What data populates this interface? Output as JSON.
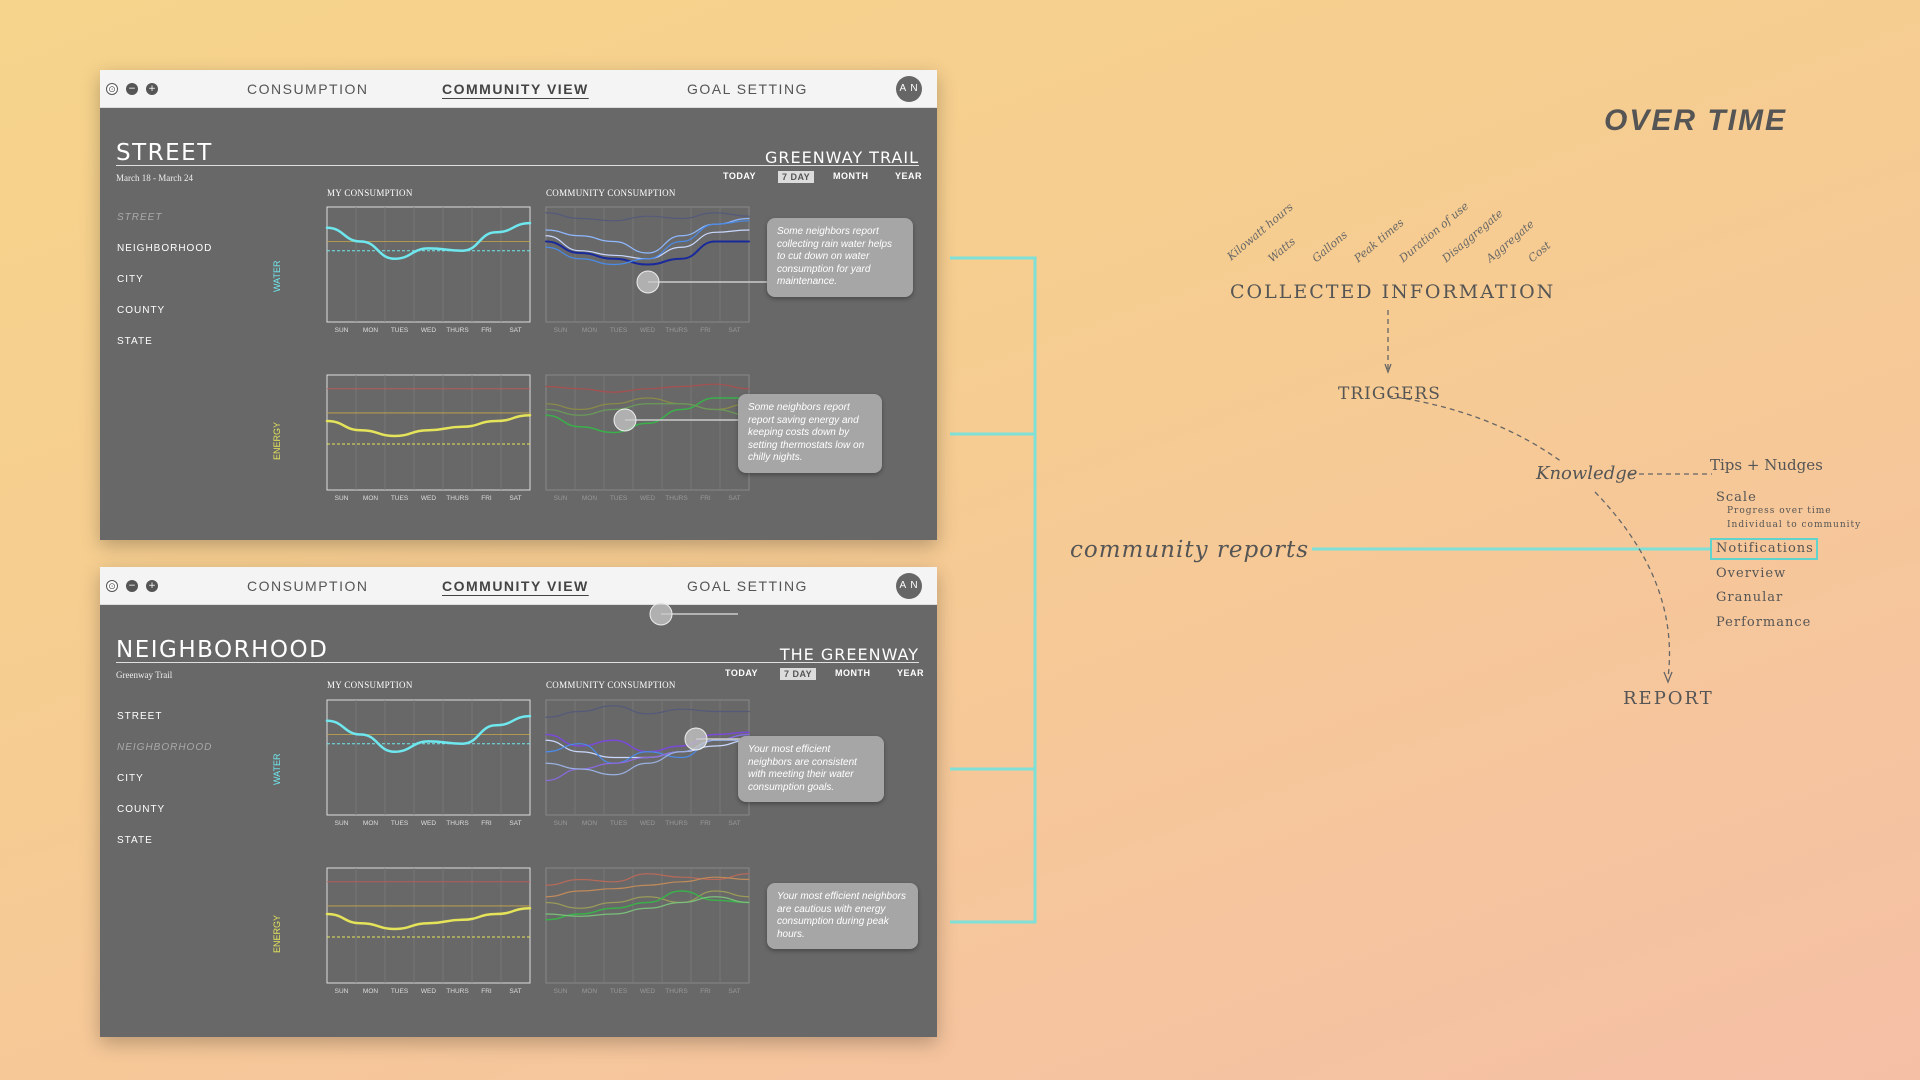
{
  "tabs": [
    "CONSUMPTION",
    "COMMUNITY VIEW",
    "GOAL SETTING"
  ],
  "avatar": "A N",
  "ranges": [
    "TODAY",
    "7 DAY",
    "MONTH",
    "YEAR"
  ],
  "nav": [
    "STREET",
    "NEIGHBORHOOD",
    "CITY",
    "COUNTY",
    "STATE"
  ],
  "days": [
    "SUN",
    "MON",
    "TUES",
    "WED",
    "THURS",
    "FRI",
    "SAT"
  ],
  "chart_titles": {
    "mine": "MY CONSUMPTION",
    "community": "COMMUNITY CONSUMPTION"
  },
  "row_labels": {
    "water": "WATER",
    "energy": "ENERGY"
  },
  "panels": [
    {
      "title": "STREET",
      "location": "GREENWAY TRAIL",
      "subtitle": "March 18 - March 24",
      "tip_water": "Some neighbors report collecting rain water helps to cut down on water consumption for yard maintenance.",
      "tip_energy": "Some neighbors report report saving energy and keeping costs down by setting thermostats low on chilly nights."
    },
    {
      "title": "NEIGHBORHOOD",
      "location": "THE GREENWAY",
      "subtitle": "Greenway Trail",
      "tip_water": "Your most efficient neighbors are consistent with meeting their water consumption goals.",
      "tip_energy": "Your most efficient neighbors are cautious with energy consumption during peak hours."
    }
  ],
  "colors": {
    "water": "#6fe7ee",
    "energy": "#e4e35a",
    "bracket": "#7fe0d8",
    "panel": "#686868"
  },
  "diagram": {
    "title": "OVER TIME",
    "collected_words": [
      "Kilowatt hours",
      "Watts",
      "Gallons",
      "Peak times",
      "Duration of use",
      "Disaggregate",
      "Aggregate",
      "Cost"
    ],
    "collected": "COLLECTED INFORMATION",
    "triggers": "TRIGGERS",
    "knowledge": "Knowledge",
    "tips": "Tips + Nudges",
    "scale": "Scale",
    "scale_sub1": "Progress over time",
    "scale_sub2": "Individual to community",
    "notifications": "Notifications",
    "overview": "Overview",
    "granular": "Granular",
    "performance": "Performance",
    "report": "REPORT",
    "community_reports": "community reports"
  }
}
